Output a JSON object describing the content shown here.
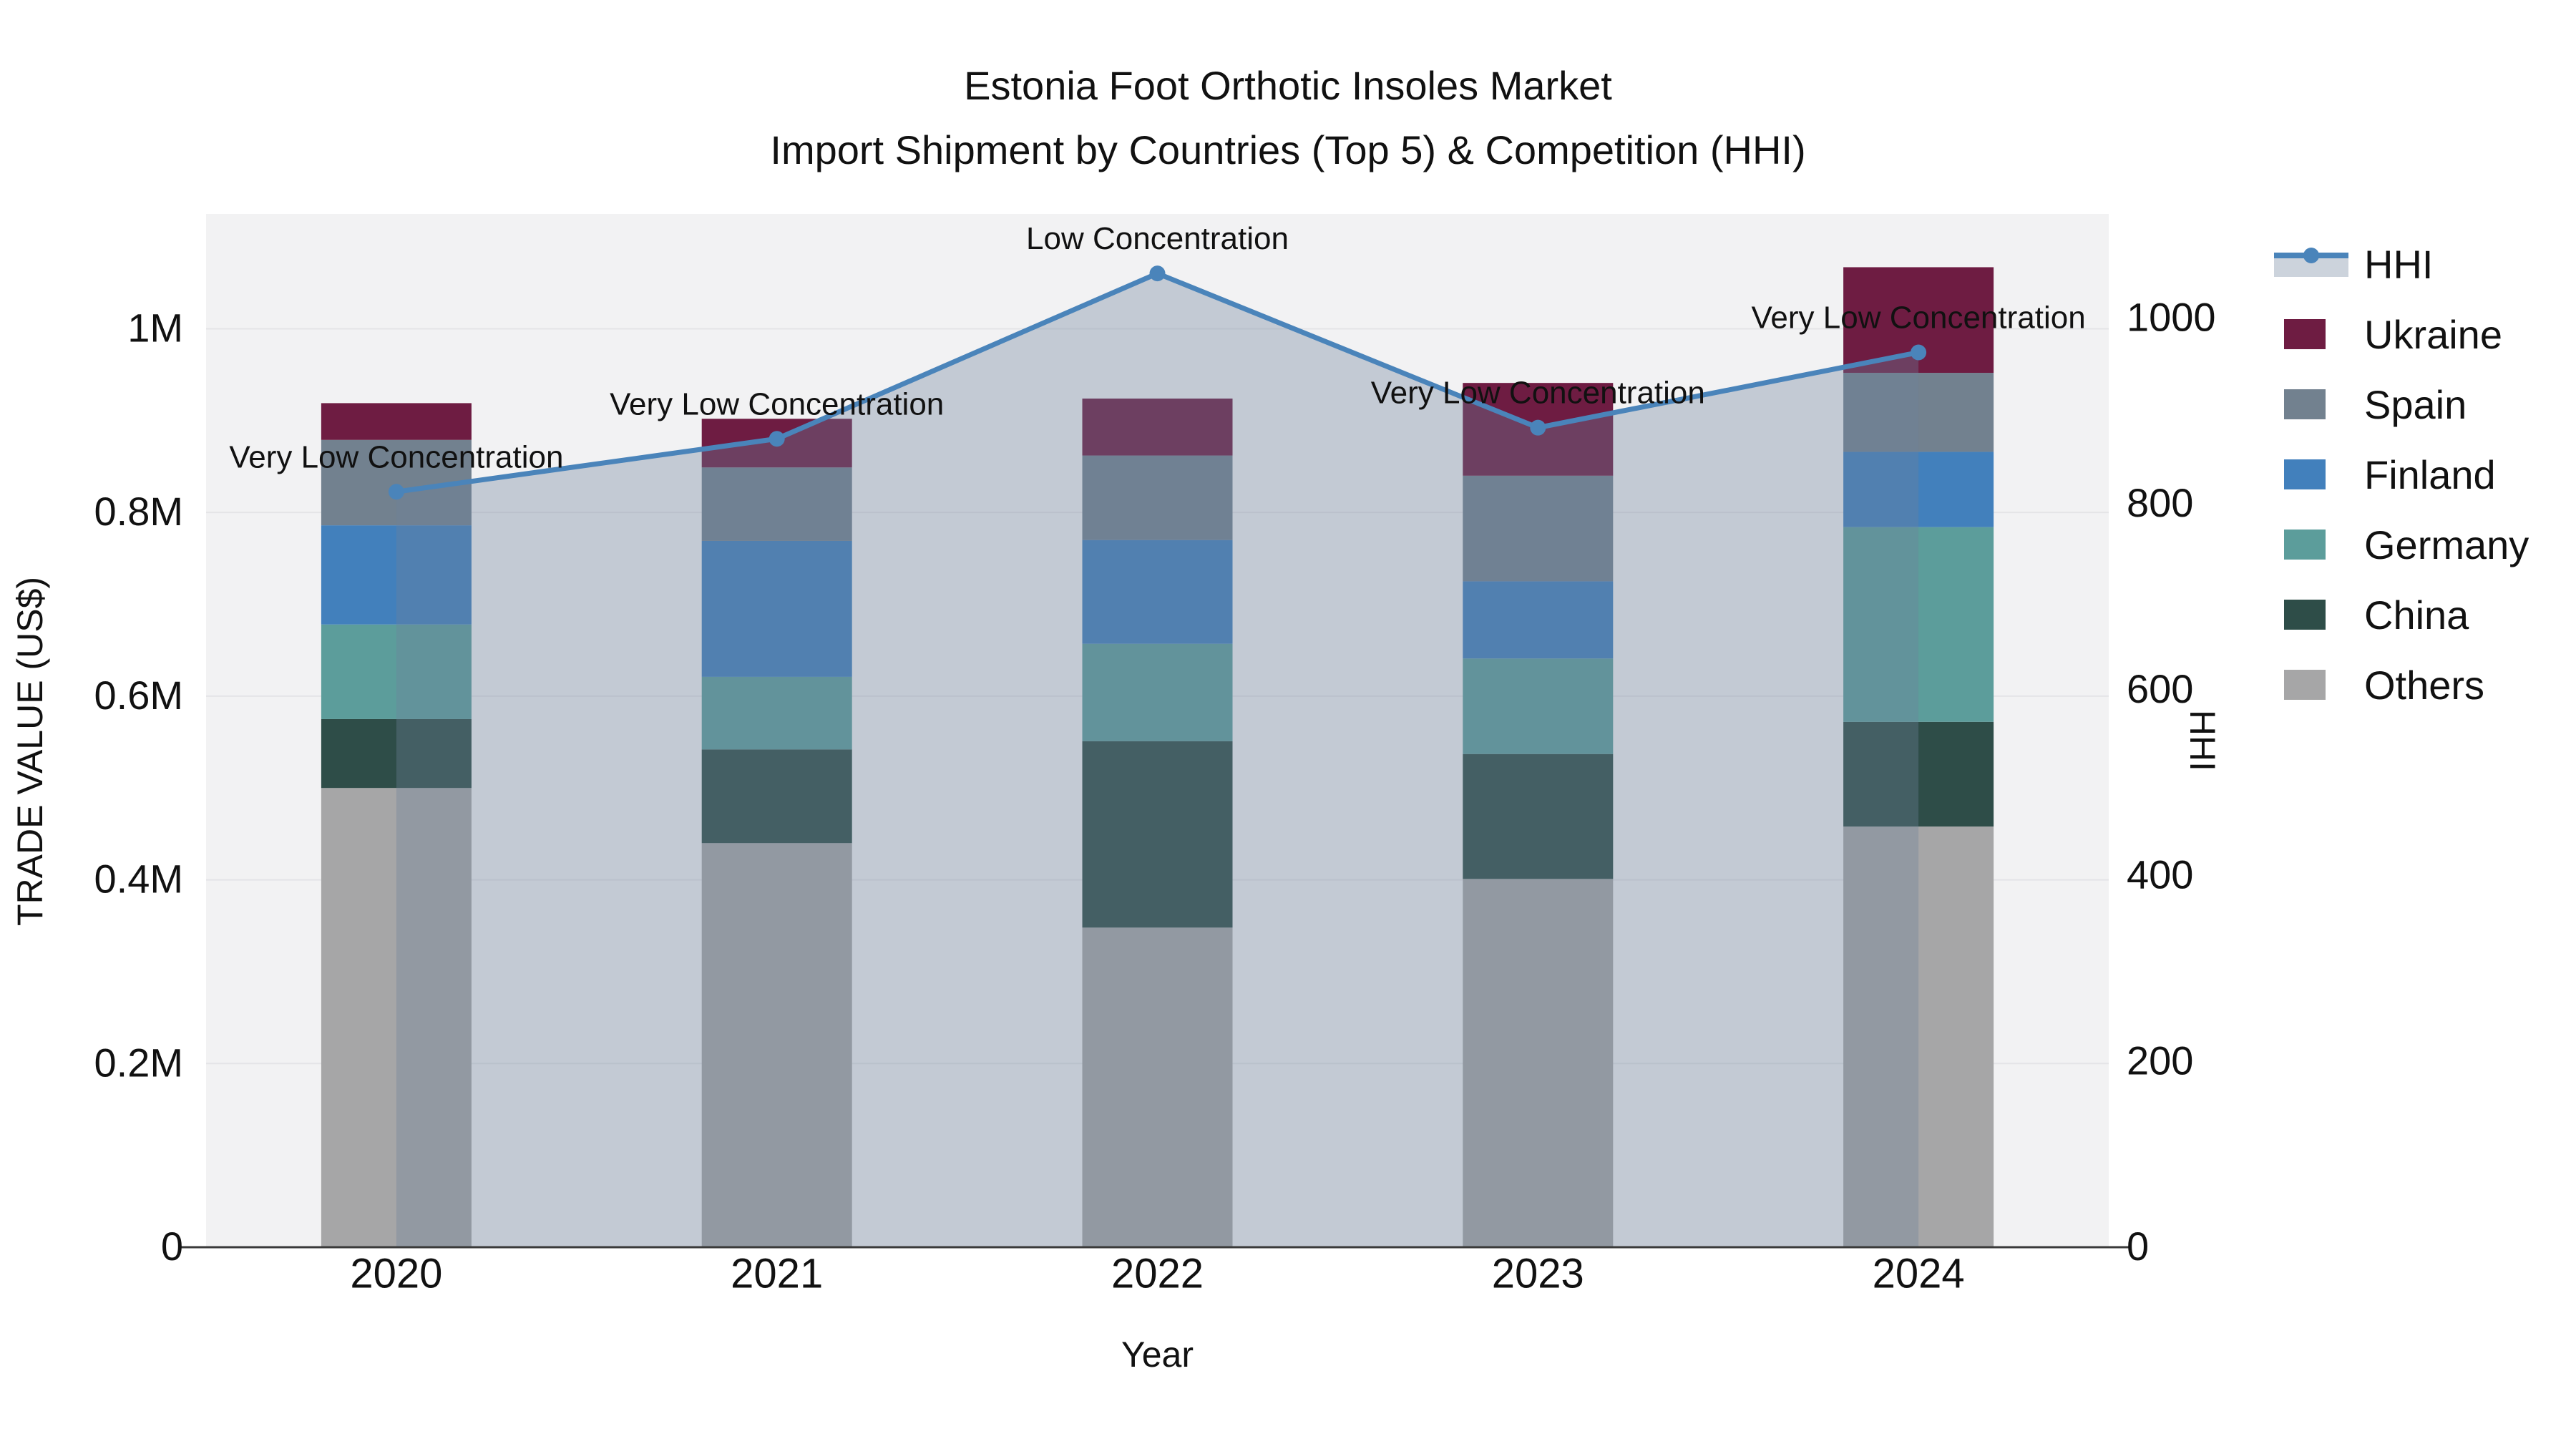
{
  "title": {
    "line1": "Estonia Foot Orthotic Insoles Market",
    "line2": "Import Shipment by Countries (Top 5) & Competition (HHI)"
  },
  "axes": {
    "left": {
      "title": "TRADE VALUE (US$)",
      "tick_labels": [
        "0",
        "0.2M",
        "0.4M",
        "0.6M",
        "0.8M",
        "1M"
      ],
      "tick_values": [
        0,
        200000,
        400000,
        600000,
        800000,
        1000000
      ]
    },
    "right": {
      "title": "HHI",
      "tick_labels": [
        "0",
        "200",
        "400",
        "600",
        "800",
        "1000"
      ],
      "tick_values": [
        0,
        200,
        400,
        600,
        800,
        1000
      ]
    },
    "x": {
      "title": "Year",
      "tick_labels": [
        "2020",
        "2021",
        "2022",
        "2023",
        "2024"
      ]
    }
  },
  "legend": {
    "items": [
      {
        "label": "HHI",
        "type": "line",
        "color": "#4a84ba"
      },
      {
        "label": "Ukraine",
        "type": "swatch",
        "color": "#6e1c42"
      },
      {
        "label": "Spain",
        "type": "swatch",
        "color": "#72818f"
      },
      {
        "label": "Finland",
        "type": "swatch",
        "color": "#4280bc"
      },
      {
        "label": "Germany",
        "type": "swatch",
        "color": "#5c9d9b"
      },
      {
        "label": "China",
        "type": "swatch",
        "color": "#2e4d48"
      },
      {
        "label": "Others",
        "type": "swatch",
        "color": "#a6a6a7"
      }
    ]
  },
  "chart_data": {
    "type": "combo_stacked_bar_line",
    "title": "Estonia Foot Orthotic Insoles Market — Import Shipment by Countries (Top 5) & Competition (HHI)",
    "categories": [
      "2020",
      "2021",
      "2022",
      "2023",
      "2024"
    ],
    "xlabel": "Year",
    "ylabel_left": "TRADE VALUE (US$)",
    "ylabel_right": "HHI",
    "ylim_left": [
      0,
      1125000
    ],
    "ylim_right": [
      0,
      1112
    ],
    "grid": true,
    "legend_position": "right",
    "bar_unit": "US$",
    "series": [
      {
        "name": "Others",
        "color": "#a6a6a7",
        "values": [
          500000,
          440000,
          348000,
          401000,
          458000
        ]
      },
      {
        "name": "China",
        "color": "#2e4d48",
        "values": [
          75000,
          102000,
          203000,
          136000,
          114000
        ]
      },
      {
        "name": "Germany",
        "color": "#5c9d9b",
        "values": [
          103000,
          79000,
          106000,
          104000,
          212000
        ]
      },
      {
        "name": "Finland",
        "color": "#4280bc",
        "values": [
          108000,
          148000,
          113000,
          84000,
          82000
        ]
      },
      {
        "name": "Spain",
        "color": "#72818f",
        "values": [
          93000,
          80000,
          92000,
          115000,
          86000
        ]
      },
      {
        "name": "Ukraine",
        "color": "#6e1c42",
        "values": [
          40000,
          53000,
          62000,
          101000,
          115000
        ]
      }
    ],
    "bar_totals": [
      919000,
      902000,
      924000,
      941000,
      1067000
    ],
    "line_series": {
      "name": "HHI",
      "axis": "right",
      "color": "#4a84ba",
      "area_fill": "rgba(110,130,155,0.35)",
      "values": [
        813,
        870,
        1048,
        882,
        963
      ]
    },
    "annotations": [
      {
        "category": "2020",
        "text": "Very Low Concentration"
      },
      {
        "category": "2021",
        "text": "Very Low Concentration"
      },
      {
        "category": "2022",
        "text": "Low Concentration"
      },
      {
        "category": "2023",
        "text": "Very Low Concentration"
      },
      {
        "category": "2024",
        "text": "Very Low Concentration"
      }
    ],
    "plot_background": "#f2f2f3",
    "gridline_color": "#e4e4e7",
    "axis_line_color": "#3a3a3a",
    "text_color": "#111111"
  }
}
